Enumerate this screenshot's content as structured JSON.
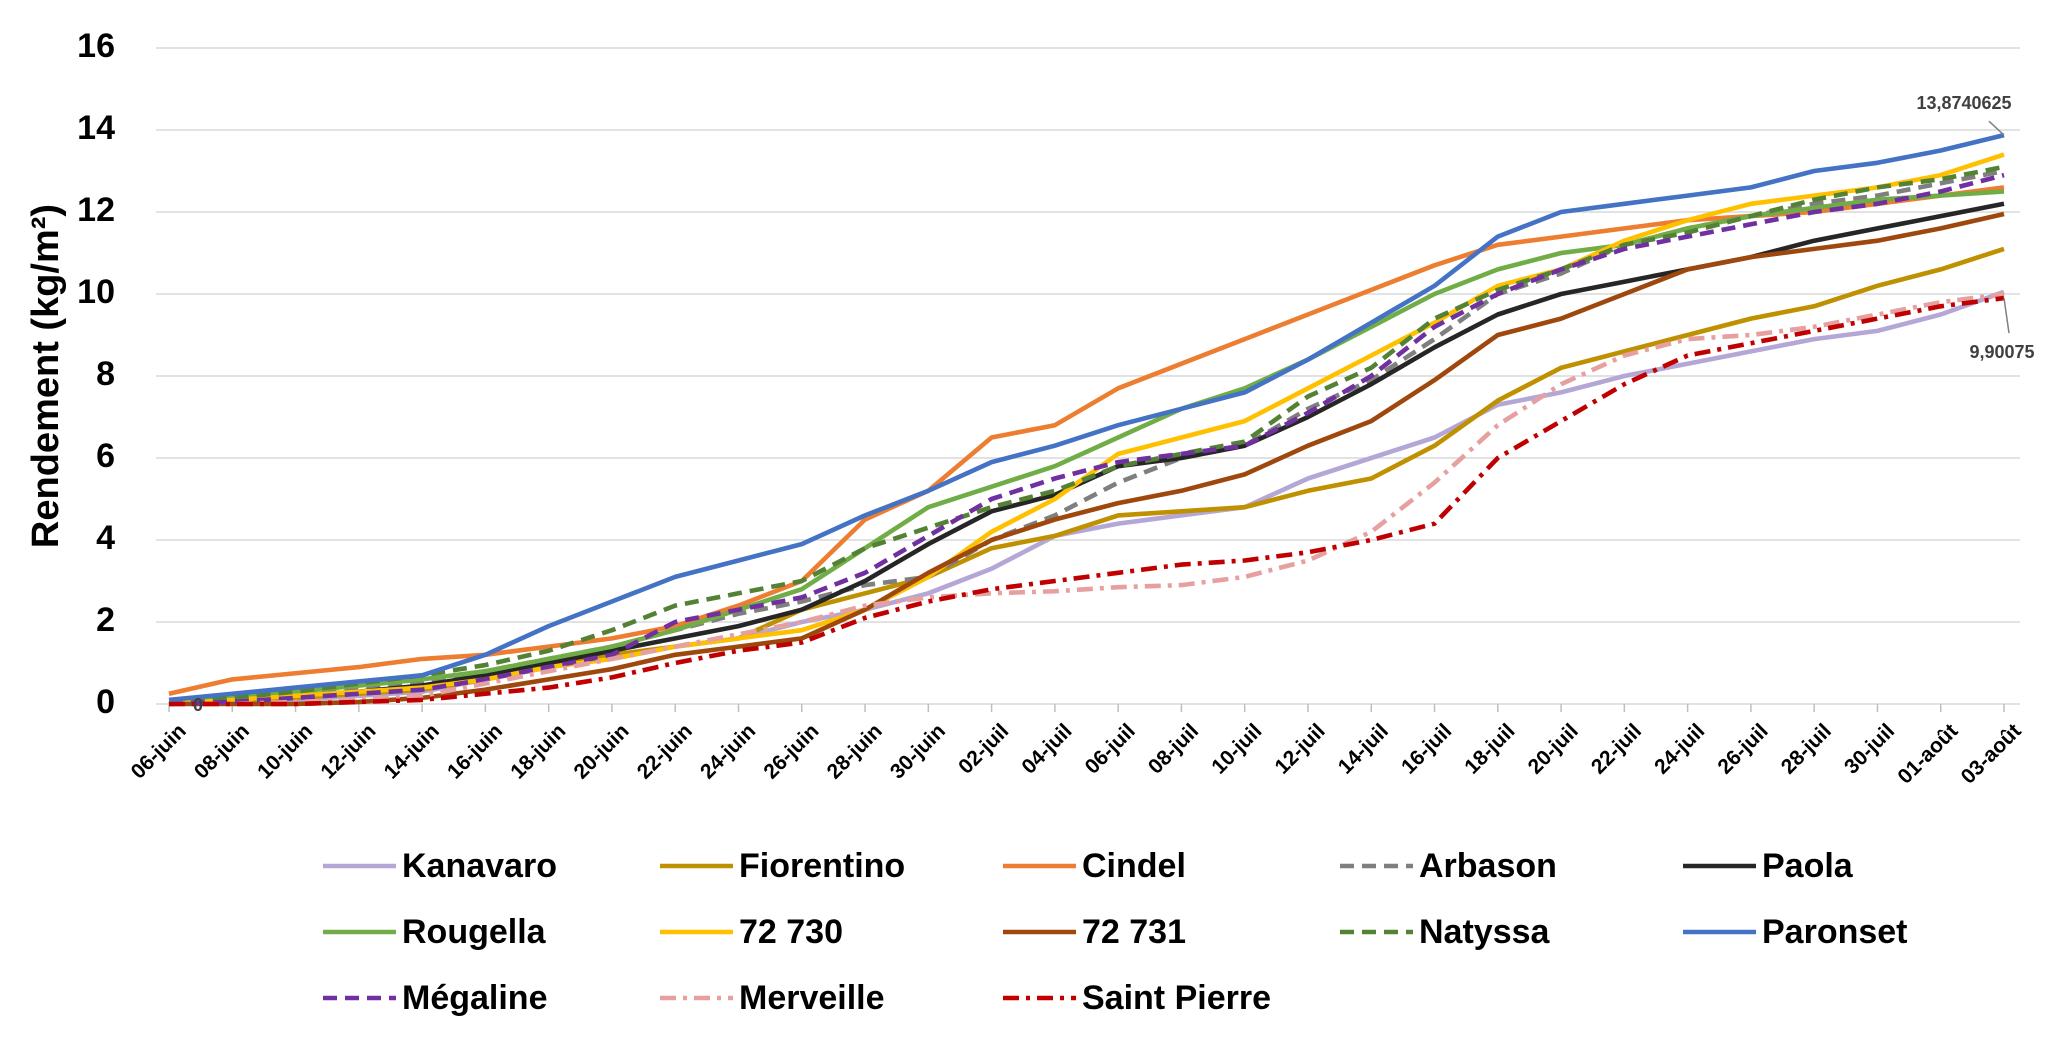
{
  "chart_data": {
    "type": "line",
    "ylabel": "Rendement (kg/m²)",
    "categories": [
      "06-juin",
      "08-juin",
      "10-juin",
      "12-juin",
      "14-juin",
      "16-juin",
      "18-juin",
      "20-juin",
      "22-juin",
      "24-juin",
      "26-juin",
      "28-juin",
      "30-juin",
      "02-juil",
      "04-juil",
      "06-juil",
      "08-juil",
      "10-juil",
      "12-juil",
      "14-juil",
      "16-juil",
      "18-juil",
      "20-juil",
      "22-juil",
      "24-juil",
      "26-juil",
      "28-juil",
      "30-juil",
      "01-août",
      "03-août"
    ],
    "ylim": [
      0,
      16
    ],
    "yticks": [
      0,
      2,
      4,
      6,
      8,
      10,
      12,
      14,
      16
    ],
    "grid": true,
    "legend": "bottom",
    "series": [
      {
        "name": "Kanavaro",
        "color": "#b4a7d6",
        "dash": "solid",
        "values": [
          0,
          0.05,
          0.1,
          0.2,
          0.3,
          0.6,
          0.9,
          1.1,
          1.4,
          1.6,
          2.0,
          2.3,
          2.7,
          3.3,
          4.1,
          4.4,
          4.6,
          4.8,
          5.5,
          6.0,
          6.5,
          7.3,
          7.6,
          8.0,
          8.3,
          8.6,
          8.9,
          9.1,
          9.5,
          10.05
        ]
      },
      {
        "name": "Fiorentino",
        "color": "#bf9000",
        "dash": "solid",
        "values": [
          0,
          0.05,
          0.15,
          0.25,
          0.35,
          0.6,
          0.9,
          1.2,
          1.4,
          1.6,
          2.3,
          2.7,
          3.1,
          3.8,
          4.1,
          4.6,
          4.7,
          4.8,
          5.2,
          5.5,
          6.3,
          7.4,
          8.2,
          8.6,
          9.0,
          9.4,
          9.7,
          10.2,
          10.6,
          11.1
        ]
      },
      {
        "name": "Cindel",
        "color": "#ed7d31",
        "dash": "solid",
        "values": [
          0.25,
          0.6,
          0.75,
          0.9,
          1.1,
          1.2,
          1.4,
          1.6,
          1.9,
          2.4,
          3.0,
          4.5,
          5.2,
          6.5,
          6.8,
          7.7,
          8.3,
          8.9,
          9.5,
          10.1,
          10.7,
          11.2,
          11.4,
          11.6,
          11.8,
          11.9,
          12.0,
          12.2,
          12.4,
          12.6
        ]
      },
      {
        "name": "Arbason",
        "color": "#7f7f7f",
        "dash": "dash",
        "values": [
          0,
          0.1,
          0.2,
          0.35,
          0.5,
          0.8,
          1.1,
          1.4,
          1.8,
          2.2,
          2.5,
          2.9,
          3.1,
          4.0,
          4.6,
          5.4,
          6.0,
          6.3,
          7.2,
          7.9,
          8.9,
          10.0,
          10.5,
          11.2,
          11.6,
          11.9,
          12.2,
          12.4,
          12.7,
          13.0
        ]
      },
      {
        "name": "Paola",
        "color": "#262626",
        "dash": "solid",
        "values": [
          0,
          0.1,
          0.2,
          0.3,
          0.45,
          0.7,
          1.0,
          1.3,
          1.6,
          1.9,
          2.3,
          3.0,
          3.9,
          4.7,
          5.1,
          5.8,
          6.0,
          6.3,
          7.0,
          7.8,
          8.7,
          9.5,
          10.0,
          10.3,
          10.6,
          10.9,
          11.3,
          11.6,
          11.9,
          12.2
        ]
      },
      {
        "name": "Rougella",
        "color": "#70ad47",
        "dash": "solid",
        "values": [
          0,
          0.2,
          0.3,
          0.45,
          0.6,
          0.8,
          1.1,
          1.4,
          1.8,
          2.3,
          2.8,
          3.8,
          4.8,
          5.3,
          5.8,
          6.5,
          7.2,
          7.7,
          8.4,
          9.2,
          10.0,
          10.6,
          11.0,
          11.2,
          11.6,
          11.9,
          12.1,
          12.3,
          12.4,
          12.5
        ]
      },
      {
        "name": "72 730",
        "color": "#ffc000",
        "dash": "solid",
        "values": [
          0,
          0.1,
          0.2,
          0.3,
          0.4,
          0.6,
          0.9,
          1.1,
          1.4,
          1.6,
          1.8,
          2.3,
          3.1,
          4.2,
          5.0,
          6.1,
          6.5,
          6.9,
          7.7,
          8.5,
          9.3,
          10.2,
          10.6,
          11.3,
          11.8,
          12.2,
          12.4,
          12.6,
          12.9,
          13.4
        ]
      },
      {
        "name": "72 731",
        "color": "#9e480e",
        "dash": "solid",
        "values": [
          0,
          0,
          0,
          0.05,
          0.15,
          0.35,
          0.6,
          0.85,
          1.2,
          1.4,
          1.6,
          2.3,
          3.2,
          4.0,
          4.5,
          4.9,
          5.2,
          5.6,
          6.3,
          6.9,
          7.9,
          9.0,
          9.4,
          10.0,
          10.6,
          10.9,
          11.1,
          11.3,
          11.6,
          11.95
        ]
      },
      {
        "name": "Natyssa",
        "color": "#548235",
        "dash": "dash",
        "values": [
          0,
          0.15,
          0.3,
          0.5,
          0.7,
          0.95,
          1.3,
          1.8,
          2.4,
          2.7,
          3.0,
          3.8,
          4.3,
          4.8,
          5.2,
          5.8,
          6.1,
          6.4,
          7.5,
          8.2,
          9.4,
          10.1,
          10.6,
          11.2,
          11.5,
          11.9,
          12.3,
          12.6,
          12.8,
          13.1
        ]
      },
      {
        "name": "Paronset",
        "color": "#4472c4",
        "dash": "solid",
        "values": [
          0.1,
          0.25,
          0.4,
          0.55,
          0.7,
          1.2,
          1.9,
          2.5,
          3.1,
          3.5,
          3.9,
          4.6,
          5.2,
          5.9,
          6.3,
          6.8,
          7.2,
          7.6,
          8.4,
          9.3,
          10.2,
          11.4,
          12.0,
          12.2,
          12.4,
          12.6,
          13.0,
          13.2,
          13.5,
          13.8740625
        ],
        "value_labels": [
          null,
          null,
          null,
          null,
          null,
          null,
          null,
          null,
          null,
          null,
          null,
          null,
          null,
          null,
          null,
          null,
          null,
          null,
          null,
          null,
          null,
          null,
          null,
          null,
          null,
          null,
          null,
          null,
          null,
          "13,8740625"
        ]
      },
      {
        "name": "Mégaline",
        "color": "#7030a0",
        "dash": "dash",
        "values": [
          0,
          0.05,
          0.15,
          0.25,
          0.35,
          0.6,
          0.9,
          1.2,
          2.0,
          2.3,
          2.6,
          3.2,
          4.1,
          5.0,
          5.5,
          5.9,
          6.1,
          6.3,
          7.1,
          8.0,
          9.2,
          10.0,
          10.6,
          11.1,
          11.4,
          11.7,
          12.0,
          12.2,
          12.5,
          12.9
        ]
      },
      {
        "name": "Merveille",
        "color": "#e6a0a0",
        "dash": "dashdot",
        "values": [
          0,
          0,
          0.05,
          0.1,
          0.2,
          0.5,
          0.8,
          1.1,
          1.4,
          1.7,
          2.0,
          2.4,
          2.6,
          2.7,
          2.75,
          2.85,
          2.9,
          3.1,
          3.5,
          4.2,
          5.4,
          6.8,
          7.8,
          8.5,
          8.9,
          9.0,
          9.2,
          9.5,
          9.8,
          10.0
        ]
      },
      {
        "name": "Saint Pierre",
        "color": "#c00000",
        "dash": "dashdot",
        "values": [
          0,
          0,
          0,
          0.05,
          0.1,
          0.25,
          0.4,
          0.65,
          1.0,
          1.3,
          1.5,
          2.1,
          2.5,
          2.8,
          3.0,
          3.2,
          3.4,
          3.5,
          3.7,
          4.0,
          4.4,
          6.0,
          6.9,
          7.8,
          8.5,
          8.8,
          9.1,
          9.4,
          9.7,
          9.90075
        ],
        "value_labels": [
          "0",
          null,
          null,
          null,
          null,
          null,
          null,
          null,
          null,
          null,
          null,
          null,
          null,
          null,
          null,
          null,
          null,
          null,
          null,
          null,
          null,
          null,
          null,
          null,
          null,
          null,
          null,
          null,
          null,
          "9,90075"
        ]
      }
    ]
  }
}
